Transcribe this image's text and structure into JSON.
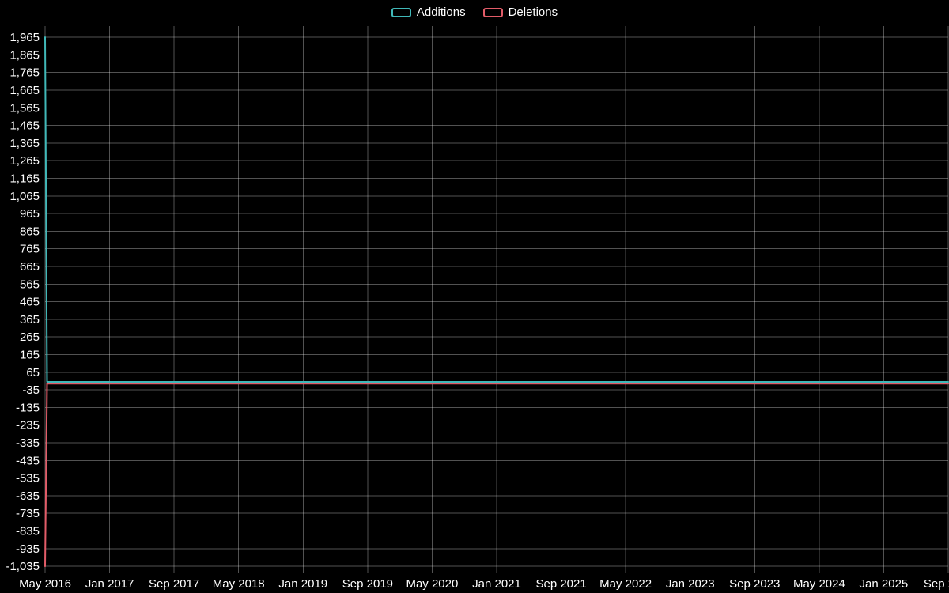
{
  "page": {
    "background": "#000000",
    "text_color": "#ffffff",
    "gridline_color": "rgba(255,255,255,0.32)"
  },
  "legend": {
    "items": [
      {
        "label": "Additions",
        "color": "#40b8b8"
      },
      {
        "label": "Deletions",
        "color": "#e25c68"
      }
    ]
  },
  "chart_data": {
    "type": "line",
    "title": "",
    "xlabel": "",
    "ylabel": "",
    "grid": true,
    "legend_position": "top-center",
    "x_axis": {
      "tick_labels": [
        "May 2016",
        "Jan 2017",
        "Sep 2017",
        "May 2018",
        "Jan 2019",
        "Sep 2019",
        "May 2020",
        "Jan 2021",
        "Sep 2021",
        "May 2022",
        "Jan 2023",
        "Sep 2023",
        "May 2024",
        "Jan 2025",
        "Sep 2025"
      ],
      "tick_month_indices": [
        0,
        8,
        16,
        24,
        32,
        40,
        48,
        56,
        64,
        72,
        80,
        88,
        96,
        104,
        112
      ],
      "total_months": 112
    },
    "y_axis": {
      "tick_values": [
        1965,
        1865,
        1765,
        1665,
        1565,
        1465,
        1365,
        1265,
        1165,
        1065,
        965,
        865,
        765,
        665,
        565,
        465,
        365,
        265,
        165,
        65,
        -35,
        -135,
        -235,
        -335,
        -435,
        -535,
        -635,
        -735,
        -835,
        -935,
        -1035
      ],
      "tick_step": 100
    },
    "ylim": [
      -1075,
      2028
    ],
    "series": [
      {
        "name": "Additions",
        "color": "#40b8b8",
        "points": [
          [
            0,
            1965
          ],
          [
            0.25,
            10
          ],
          [
            112,
            10
          ]
        ]
      },
      {
        "name": "Deletions",
        "color": "#e25c68",
        "points": [
          [
            0,
            -1035
          ],
          [
            0.25,
            0
          ],
          [
            112,
            0
          ]
        ]
      }
    ]
  }
}
